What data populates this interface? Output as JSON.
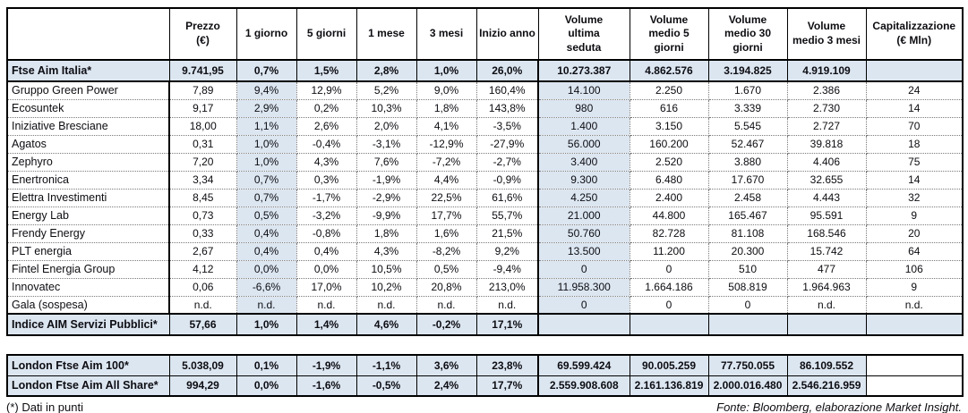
{
  "colors": {
    "highlight": "#DCE6F1",
    "border": "#000000"
  },
  "footnotes": {
    "left": "(*) Dati in punti",
    "right": "Fonte: Bloomberg, elaborazione Market Insight."
  },
  "chart_data": {
    "type": "table",
    "title": "",
    "columns": [
      "",
      "Prezzo\n(€)",
      "1 giorno",
      "5 giorni",
      "1 mese",
      "3 mesi",
      "Inizio anno",
      "Volume\nultima\nseduta",
      "Volume\nmedio 5\ngiorni",
      "Volume\nmedio 30\ngiorni",
      "Volume\nmedio 3 mesi",
      "Capitalizzazione\n(€ Mln)"
    ],
    "rows": [
      {
        "name": "Ftse Aim Italia*",
        "type": "index",
        "values": [
          "9.741,95",
          "0,7%",
          "1,5%",
          "2,8%",
          "1,0%",
          "26,0%",
          "10.273.387",
          "4.862.576",
          "3.194.825",
          "4.919.109",
          ""
        ]
      },
      {
        "name": "Gruppo Green Power",
        "type": "stock",
        "values": [
          "7,89",
          "9,4%",
          "12,9%",
          "5,2%",
          "9,0%",
          "160,4%",
          "14.100",
          "2.250",
          "1.670",
          "2.386",
          "24"
        ]
      },
      {
        "name": "Ecosuntek",
        "type": "stock",
        "values": [
          "9,17",
          "2,9%",
          "0,2%",
          "10,3%",
          "1,8%",
          "143,8%",
          "980",
          "616",
          "3.339",
          "2.730",
          "14"
        ]
      },
      {
        "name": "Iniziative Bresciane",
        "type": "stock",
        "values": [
          "18,00",
          "1,1%",
          "2,6%",
          "2,0%",
          "4,1%",
          "-3,5%",
          "1.400",
          "3.150",
          "5.545",
          "2.727",
          "70"
        ]
      },
      {
        "name": "Agatos",
        "type": "stock",
        "values": [
          "0,31",
          "1,0%",
          "-0,4%",
          "-3,1%",
          "-12,9%",
          "-27,9%",
          "56.000",
          "160.200",
          "52.467",
          "39.818",
          "18"
        ]
      },
      {
        "name": "Zephyro",
        "type": "stock",
        "values": [
          "7,20",
          "1,0%",
          "4,3%",
          "7,6%",
          "-7,2%",
          "-2,7%",
          "3.400",
          "2.520",
          "3.880",
          "4.406",
          "75"
        ]
      },
      {
        "name": "Enertronica",
        "type": "stock",
        "values": [
          "3,34",
          "0,7%",
          "0,3%",
          "-1,9%",
          "4,4%",
          "-0,9%",
          "9.300",
          "6.480",
          "17.670",
          "32.655",
          "14"
        ]
      },
      {
        "name": "Elettra Investimenti",
        "type": "stock",
        "values": [
          "8,45",
          "0,7%",
          "-1,7%",
          "-2,9%",
          "22,5%",
          "61,6%",
          "4.250",
          "2.400",
          "2.458",
          "4.443",
          "32"
        ]
      },
      {
        "name": "Energy Lab",
        "type": "stock",
        "values": [
          "0,73",
          "0,5%",
          "-3,2%",
          "-9,9%",
          "17,7%",
          "55,7%",
          "21.000",
          "44.800",
          "165.467",
          "95.591",
          "9"
        ]
      },
      {
        "name": "Frendy Energy",
        "type": "stock",
        "values": [
          "0,33",
          "0,4%",
          "-0,8%",
          "1,8%",
          "1,6%",
          "21,5%",
          "50.760",
          "82.728",
          "81.108",
          "168.546",
          "20"
        ]
      },
      {
        "name": "PLT energia",
        "type": "stock",
        "values": [
          "2,67",
          "0,4%",
          "0,4%",
          "4,3%",
          "-8,2%",
          "9,2%",
          "13.500",
          "11.200",
          "20.300",
          "15.742",
          "64"
        ]
      },
      {
        "name": "Fintel Energia Group",
        "type": "stock",
        "values": [
          "4,12",
          "0,0%",
          "0,0%",
          "10,5%",
          "0,5%",
          "-9,4%",
          "0",
          "0",
          "510",
          "477",
          "106"
        ]
      },
      {
        "name": "Innovatec",
        "type": "stock",
        "values": [
          "0,06",
          "-6,6%",
          "17,0%",
          "10,2%",
          "20,8%",
          "213,0%",
          "11.958.300",
          "1.664.186",
          "508.819",
          "1.964.963",
          "9"
        ]
      },
      {
        "name": "Gala (sospesa)",
        "type": "stock",
        "values": [
          "n.d.",
          "n.d.",
          "n.d.",
          "n.d.",
          "n.d.",
          "n.d.",
          "0",
          "0",
          "0",
          "n.d.",
          "n.d."
        ]
      },
      {
        "name": "Indice AIM Servizi Pubblici*",
        "type": "index",
        "values": [
          "57,66",
          "1,0%",
          "1,4%",
          "4,6%",
          "-0,2%",
          "17,1%",
          "",
          "",
          "",
          "",
          ""
        ]
      }
    ],
    "london_rows": [
      {
        "name": "London Ftse Aim 100*",
        "values": [
          "5.038,09",
          "0,1%",
          "-1,9%",
          "-1,1%",
          "3,6%",
          "23,8%",
          "69.599.424",
          "90.005.259",
          "77.750.055",
          "86.109.552",
          ""
        ]
      },
      {
        "name": "London Ftse Aim All Share*",
        "values": [
          "994,29",
          "0,0%",
          "-1,6%",
          "-0,5%",
          "2,4%",
          "17,7%",
          "2.559.908.608",
          "2.161.136.819",
          "2.000.016.480",
          "2.546.216.959",
          ""
        ]
      }
    ]
  }
}
